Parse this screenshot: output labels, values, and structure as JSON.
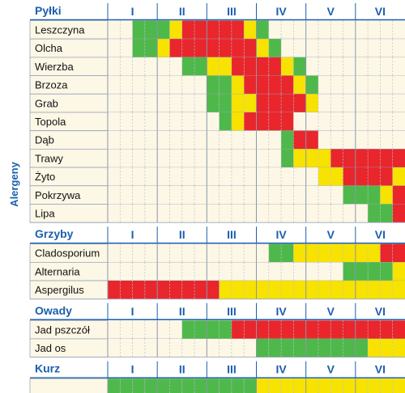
{
  "chart_data": {
    "type": "heatmap",
    "ylabel": "Alergeny",
    "months": [
      "I",
      "II",
      "III",
      "IV",
      "V",
      "VI"
    ],
    "periods_per_month": 4,
    "legend_colors": {
      "low": "#4fb84a",
      "medium": "#f7e200",
      "high": "#e8262c"
    },
    "sections": [
      {
        "name": "Pyłki",
        "rows": [
          {
            "label": "Leszczyna",
            "levels": [
              0,
              0,
              1,
              1,
              1,
              2,
              3,
              3,
              3,
              3,
              3,
              2,
              1,
              0,
              0,
              0,
              0,
              0,
              0,
              0,
              0,
              0,
              0,
              0
            ]
          },
          {
            "label": "Olcha",
            "levels": [
              0,
              0,
              1,
              1,
              2,
              3,
              3,
              3,
              3,
              3,
              3,
              3,
              2,
              1,
              0,
              0,
              0,
              0,
              0,
              0,
              0,
              0,
              0,
              0
            ]
          },
          {
            "label": "Wierzba",
            "levels": [
              0,
              0,
              0,
              0,
              0,
              0,
              1,
              1,
              2,
              2,
              3,
              3,
              3,
              3,
              2,
              1,
              0,
              0,
              0,
              0,
              0,
              0,
              0,
              0
            ]
          },
          {
            "label": "Brzoza",
            "levels": [
              0,
              0,
              0,
              0,
              0,
              0,
              0,
              0,
              1,
              1,
              2,
              3,
              3,
              3,
              3,
              2,
              1,
              0,
              0,
              0,
              0,
              0,
              0,
              0
            ]
          },
          {
            "label": "Grab",
            "levels": [
              0,
              0,
              0,
              0,
              0,
              0,
              0,
              0,
              1,
              1,
              2,
              2,
              3,
              3,
              3,
              3,
              2,
              0,
              0,
              0,
              0,
              0,
              0,
              0
            ]
          },
          {
            "label": "Topola",
            "levels": [
              0,
              0,
              0,
              0,
              0,
              0,
              0,
              0,
              0,
              1,
              2,
              3,
              3,
              3,
              3,
              0,
              0,
              0,
              0,
              0,
              0,
              0,
              0,
              0
            ]
          },
          {
            "label": "Dąb",
            "levels": [
              0,
              0,
              0,
              0,
              0,
              0,
              0,
              0,
              0,
              0,
              0,
              0,
              0,
              0,
              1,
              3,
              3,
              0,
              0,
              0,
              0,
              0,
              0,
              0
            ]
          },
          {
            "label": "Trawy",
            "levels": [
              0,
              0,
              0,
              0,
              0,
              0,
              0,
              0,
              0,
              0,
              0,
              0,
              0,
              0,
              1,
              2,
              2,
              2,
              3,
              3,
              3,
              3,
              3,
              3
            ]
          },
          {
            "label": "Żyto",
            "levels": [
              0,
              0,
              0,
              0,
              0,
              0,
              0,
              0,
              0,
              0,
              0,
              0,
              0,
              0,
              0,
              0,
              0,
              2,
              2,
              3,
              3,
              3,
              3,
              2
            ]
          },
          {
            "label": "Pokrzywa",
            "levels": [
              0,
              0,
              0,
              0,
              0,
              0,
              0,
              0,
              0,
              0,
              0,
              0,
              0,
              0,
              0,
              0,
              0,
              0,
              0,
              1,
              1,
              1,
              2,
              3
            ]
          },
          {
            "label": "Lipa",
            "levels": [
              0,
              0,
              0,
              0,
              0,
              0,
              0,
              0,
              0,
              0,
              0,
              0,
              0,
              0,
              0,
              0,
              0,
              0,
              0,
              0,
              0,
              1,
              1,
              3
            ]
          }
        ]
      },
      {
        "name": "Grzyby",
        "rows": [
          {
            "label": "Cladosporium",
            "levels": [
              0,
              0,
              0,
              0,
              0,
              0,
              0,
              0,
              0,
              0,
              0,
              0,
              0,
              1,
              1,
              2,
              2,
              2,
              2,
              2,
              2,
              2,
              3,
              3
            ]
          },
          {
            "label": "Alternaria",
            "levels": [
              0,
              0,
              0,
              0,
              0,
              0,
              0,
              0,
              0,
              0,
              0,
              0,
              0,
              0,
              0,
              0,
              0,
              0,
              0,
              1,
              1,
              1,
              1,
              2
            ]
          },
          {
            "label": "Aspergilus",
            "levels": [
              3,
              3,
              3,
              3,
              3,
              3,
              3,
              3,
              3,
              2,
              2,
              2,
              2,
              2,
              2,
              2,
              2,
              2,
              2,
              2,
              2,
              2,
              2,
              2
            ]
          }
        ]
      },
      {
        "name": "Owady",
        "rows": [
          {
            "label": "Jad pszczół",
            "levels": [
              0,
              0,
              0,
              0,
              0,
              0,
              1,
              1,
              1,
              1,
              3,
              3,
              3,
              3,
              3,
              3,
              3,
              3,
              3,
              3,
              3,
              3,
              3,
              3
            ]
          },
          {
            "label": "Jad os",
            "levels": [
              0,
              0,
              0,
              0,
              0,
              0,
              0,
              0,
              0,
              0,
              0,
              0,
              1,
              1,
              1,
              1,
              1,
              1,
              1,
              1,
              1,
              2,
              2,
              2
            ]
          }
        ]
      },
      {
        "name": "Kurz",
        "rows": [
          {
            "label": "",
            "levels": [
              1,
              1,
              1,
              1,
              1,
              1,
              1,
              1,
              1,
              1,
              1,
              1,
              2,
              2,
              2,
              2,
              2,
              2,
              2,
              2,
              2,
              2,
              2,
              2
            ]
          }
        ]
      }
    ]
  }
}
